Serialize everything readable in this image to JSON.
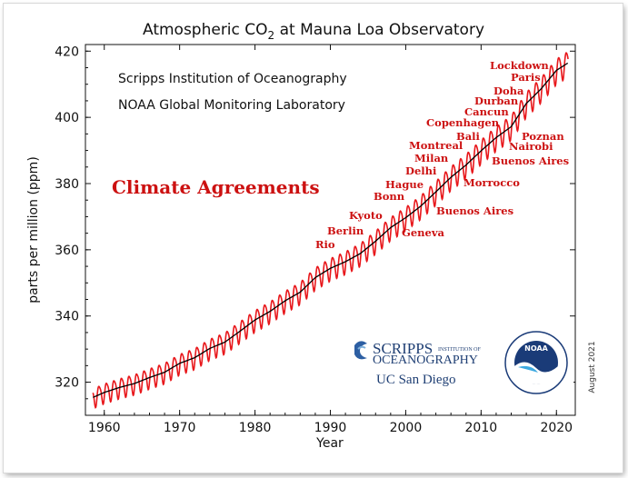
{
  "chart_data": {
    "type": "line",
    "title": "Atmospheric CO",
    "title_sub": "2",
    "title_rest": " at Mauna Loa Observatory",
    "xlabel": "Year",
    "ylabel": "parts per million (ppm)",
    "xlim": [
      1957.5,
      2022.5
    ],
    "ylim": [
      310,
      422
    ],
    "x_ticks": [
      1960,
      1970,
      1980,
      1990,
      2000,
      2010,
      2020
    ],
    "y_ticks": [
      320,
      340,
      360,
      380,
      400,
      420
    ],
    "grid": false,
    "series": [
      {
        "kind": "monthly mean",
        "color": "#e8171b",
        "seasonal_amplitude": 3.2
      },
      {
        "kind": "trend",
        "color": "#000000",
        "x": [
          1958.5,
          1960,
          1962,
          1964,
          1966,
          1968,
          1970,
          1972,
          1974,
          1976,
          1978,
          1980,
          1982,
          1984,
          1986,
          1988,
          1990,
          1992,
          1994,
          1996,
          1998,
          2000,
          2002,
          2004,
          2006,
          2008,
          2010,
          2012,
          2014,
          2016,
          2018,
          2020,
          2021.5
        ],
        "y": [
          315.4,
          316.9,
          318.4,
          319.6,
          321.4,
          323.0,
          325.7,
          327.4,
          330.2,
          332.1,
          335.4,
          338.8,
          341.4,
          344.6,
          347.2,
          351.6,
          354.4,
          356.4,
          358.9,
          362.6,
          366.7,
          369.7,
          373.2,
          377.5,
          381.9,
          385.6,
          389.9,
          393.9,
          397.2,
          404.2,
          408.7,
          414.2,
          416.4
        ]
      }
    ],
    "annotations": [
      {
        "text": "Rio",
        "year": 1992,
        "ppm": 359.5
      },
      {
        "text": "Berlin",
        "year": 1995,
        "ppm": 363.5
      },
      {
        "text": "Kyoto",
        "year": 1997,
        "ppm": 368.0
      },
      {
        "text": "Bonn",
        "year": 1999,
        "ppm": 372.5
      },
      {
        "text": "Hague",
        "year": 2000,
        "ppm": 375.8
      },
      {
        "text": "Delhi",
        "year": 2002,
        "ppm": 380.5
      },
      {
        "text": "Milan",
        "year": 2003,
        "ppm": 384.0
      },
      {
        "text": "Montreal",
        "year": 2005,
        "ppm": 387.5
      },
      {
        "text": "Bali",
        "year": 2007,
        "ppm": 391.5
      },
      {
        "text": "Copenhagen",
        "year": 2009,
        "ppm": 395.0
      },
      {
        "text": "Cancun",
        "year": 2010,
        "ppm": 398.5
      },
      {
        "text": "Durban",
        "year": 2011,
        "ppm": 402.0
      },
      {
        "text": "Doha",
        "year": 2012,
        "ppm": 405.5
      },
      {
        "text": "Paris",
        "year": 2015,
        "ppm": 411.0
      },
      {
        "text": "Lockdown",
        "year": 2020,
        "ppm": 414.5
      },
      {
        "text": "Poznan",
        "year": 2008,
        "ppm": 386.0
      },
      {
        "text": "Nairobi",
        "year": 2006,
        "ppm": 382.5
      },
      {
        "text": "Buenos Aires",
        "year": 2004,
        "ppm": 378.5
      },
      {
        "text": "Morrocco",
        "year": 2001,
        "ppm": 371.0
      },
      {
        "text": "Buenos Aires",
        "year": 1998,
        "ppm": 364.0
      },
      {
        "text": "Geneva",
        "year": 1996,
        "ppm": 360.0
      }
    ]
  },
  "credits": {
    "line1": "Scripps Institution of Oceanography",
    "line2": "NOAA Global Monitoring Laboratory"
  },
  "heading_annotation": "Climate Agreements",
  "date_stamp": "August 2021",
  "logos": {
    "scripps_big": "SCRIPPS",
    "scripps_small": "INSTITUTION OF",
    "oceanography": "OCEANOGRAPHY",
    "ucsd": "UC San Diego",
    "noaa": "NOAA"
  }
}
